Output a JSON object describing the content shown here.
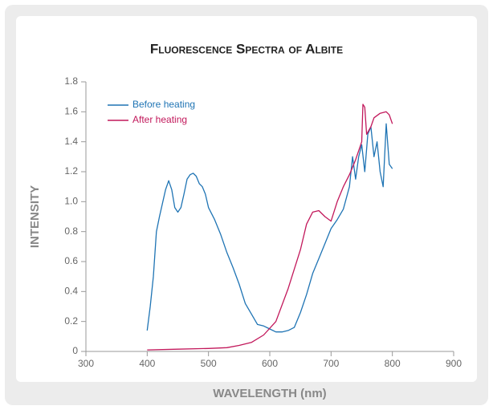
{
  "chart_data": {
    "type": "line",
    "title": "Fluorescence Spectra of Albite",
    "xlabel": "WAVELENGTH (nm)",
    "ylabel": "INTENSITY",
    "xlim": [
      300,
      900
    ],
    "xticks": [
      300,
      400,
      500,
      600,
      700,
      800,
      900
    ],
    "ylim": [
      0,
      1.8
    ],
    "yticks": [
      0,
      0.2,
      0.4,
      0.6,
      0.8,
      {
        "value": 1,
        "label": "1.0"
      },
      1.2,
      1.4,
      1.6,
      1.8
    ],
    "legend": "upper left",
    "series": [
      {
        "name": "Before heating",
        "color": "#1f74b4",
        "x": [
          400,
          405,
          410,
          415,
          420,
          430,
          435,
          440,
          445,
          450,
          455,
          460,
          465,
          470,
          475,
          480,
          485,
          490,
          495,
          500,
          510,
          520,
          530,
          540,
          550,
          560,
          570,
          580,
          590,
          600,
          610,
          620,
          630,
          640,
          650,
          660,
          670,
          680,
          690,
          700,
          710,
          720,
          730,
          735,
          740,
          745,
          750,
          755,
          760,
          765,
          770,
          775,
          780,
          785,
          790,
          795,
          800
        ],
        "values": [
          0.14,
          0.3,
          0.5,
          0.8,
          0.9,
          1.08,
          1.14,
          1.08,
          0.96,
          0.93,
          0.96,
          1.05,
          1.15,
          1.18,
          1.19,
          1.17,
          1.12,
          1.1,
          1.05,
          0.96,
          0.88,
          0.78,
          0.66,
          0.56,
          0.45,
          0.32,
          0.25,
          0.18,
          0.17,
          0.15,
          0.13,
          0.13,
          0.14,
          0.16,
          0.26,
          0.38,
          0.52,
          0.62,
          0.72,
          0.82,
          0.88,
          0.95,
          1.1,
          1.3,
          1.15,
          1.3,
          1.38,
          1.2,
          1.45,
          1.5,
          1.3,
          1.4,
          1.2,
          1.1,
          1.52,
          1.25,
          1.22
        ]
      },
      {
        "name": "After heating",
        "color": "#c2185b",
        "x": [
          400,
          450,
          500,
          530,
          550,
          570,
          590,
          610,
          630,
          650,
          660,
          670,
          680,
          690,
          700,
          710,
          720,
          730,
          740,
          750,
          752,
          755,
          758,
          765,
          770,
          780,
          790,
          795,
          800
        ],
        "values": [
          0.01,
          0.015,
          0.02,
          0.025,
          0.04,
          0.06,
          0.11,
          0.2,
          0.42,
          0.68,
          0.85,
          0.93,
          0.94,
          0.9,
          0.87,
          1.0,
          1.1,
          1.18,
          1.28,
          1.4,
          1.65,
          1.63,
          1.45,
          1.5,
          1.56,
          1.59,
          1.6,
          1.58,
          1.52
        ]
      }
    ]
  }
}
